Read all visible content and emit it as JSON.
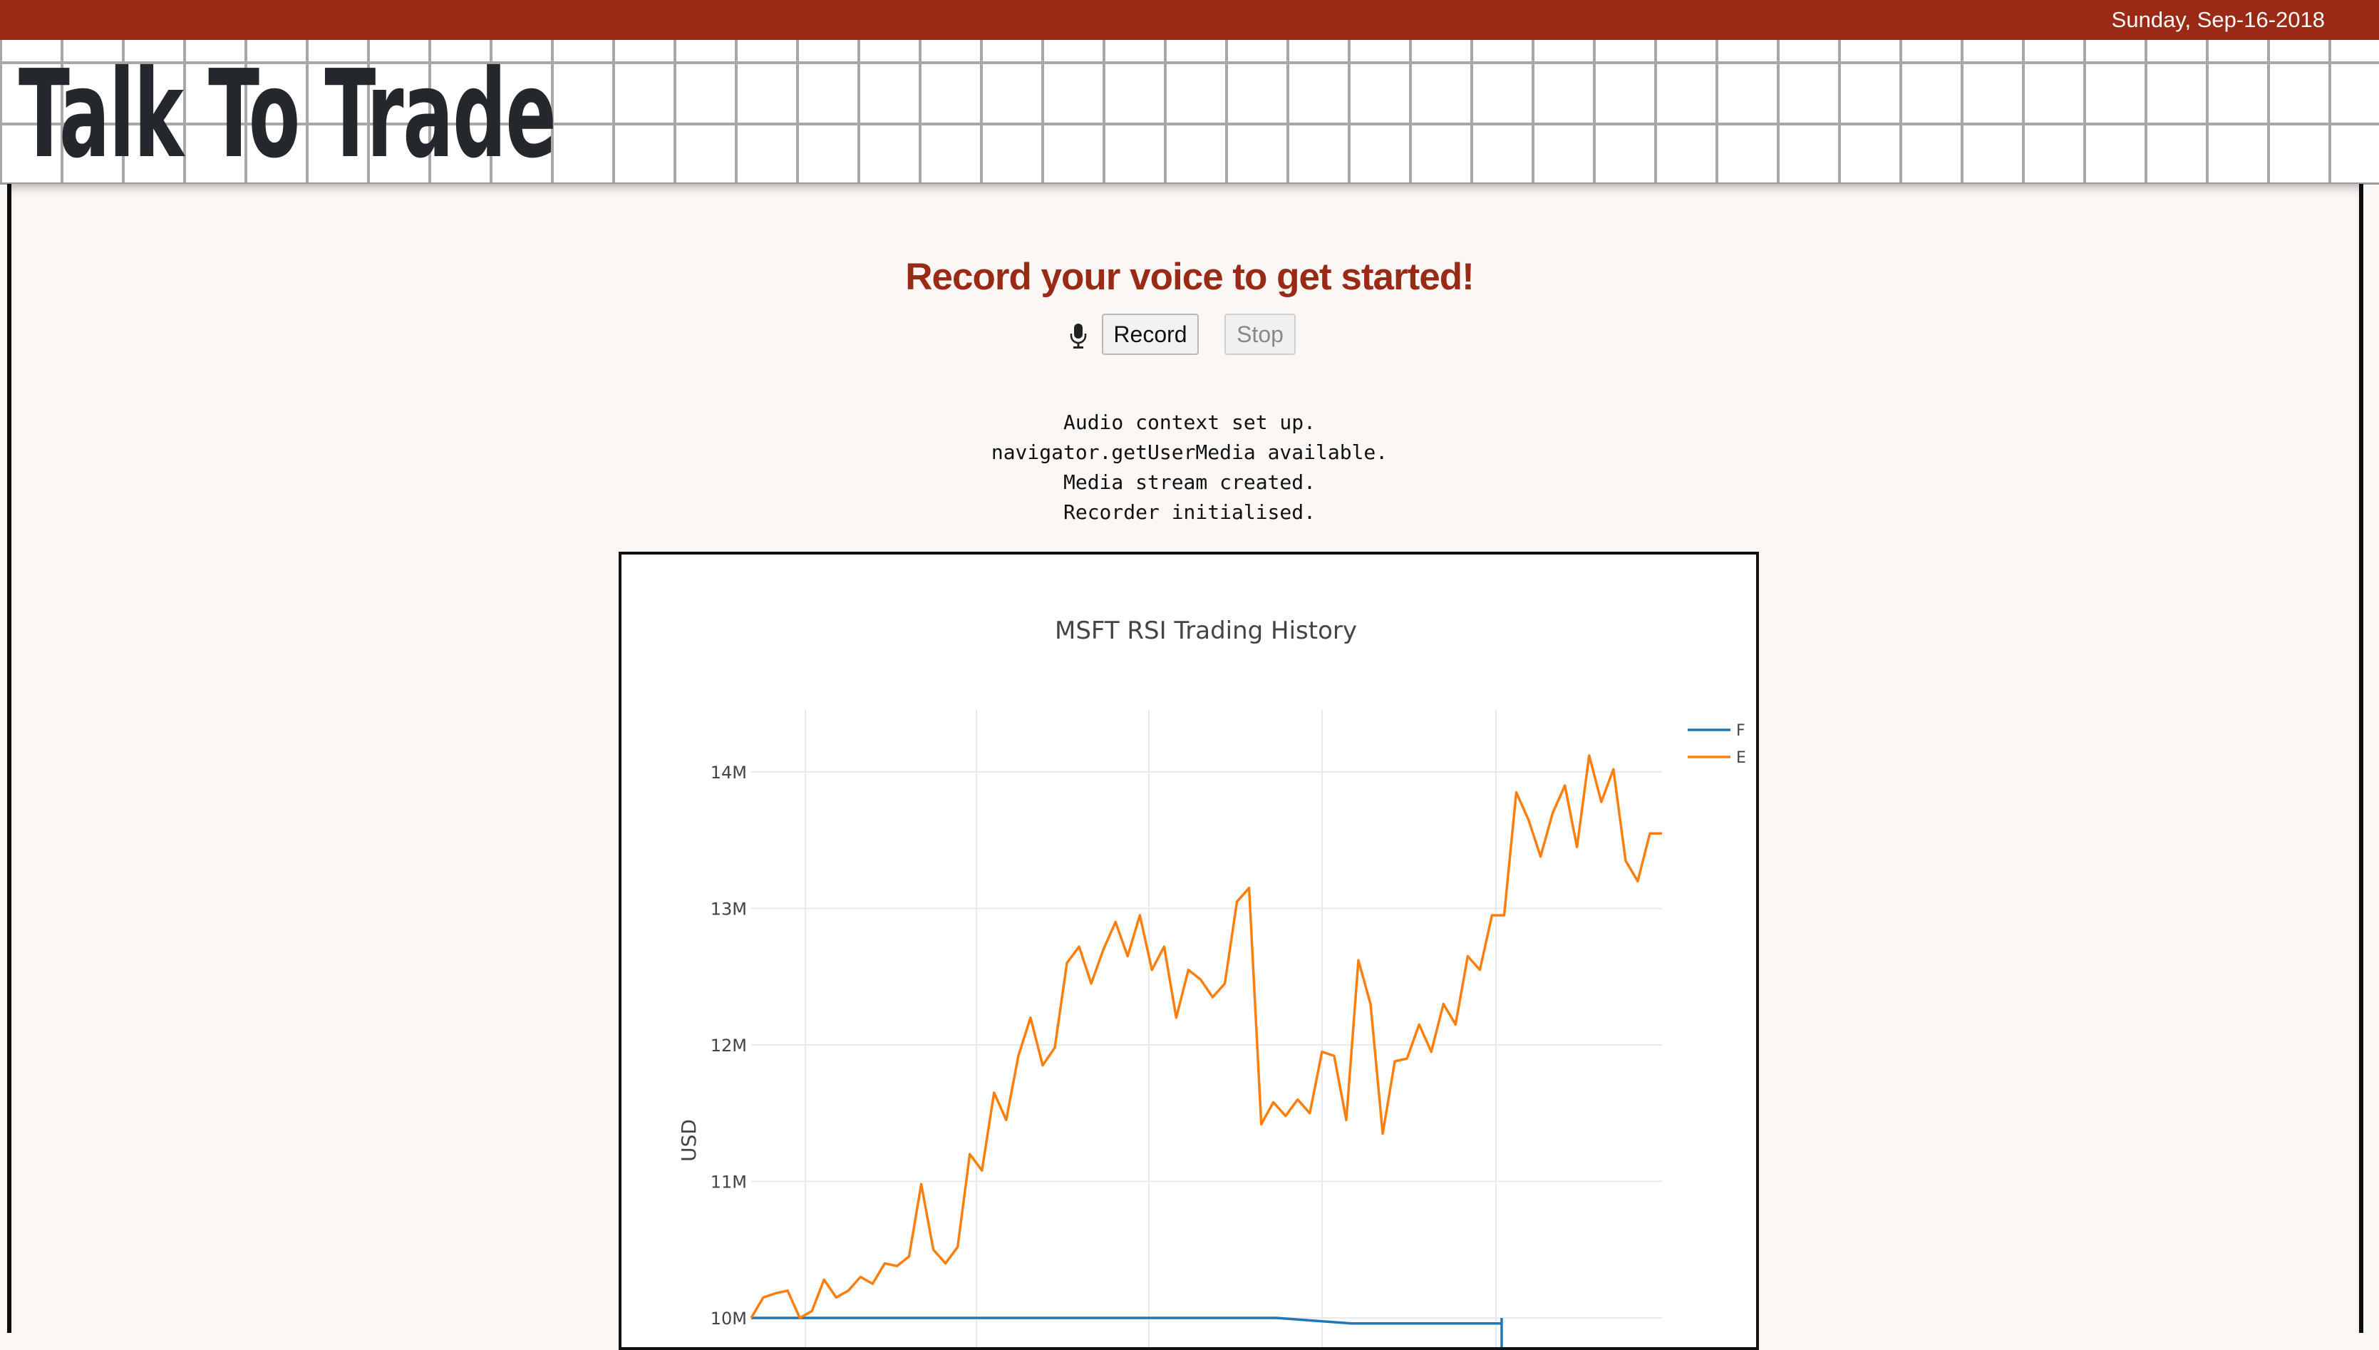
{
  "topbar": {
    "date": "Sunday, Sep-16-2018",
    "color": "#9a2a15"
  },
  "header": {
    "title": "Talk To Trade"
  },
  "main": {
    "headline": "Record your voice to get started!",
    "mic_icon": "microphone-icon",
    "record_label": "Record",
    "stop_label": "Stop",
    "log": [
      "Audio context set up.",
      "navigator.getUserMedia available.",
      "Media stream created.",
      "Recorder initialised."
    ]
  },
  "chart_data": {
    "type": "line",
    "title": "MSFT RSI Trading History",
    "ylabel": "USD",
    "yticks": [
      "14M",
      "13M",
      "12M",
      "11M",
      "10M"
    ],
    "ylim": [
      9.96,
      14.45
    ],
    "grid": true,
    "legend_placement": "top-right",
    "legend_entries_visible": [
      "F",
      "E"
    ],
    "series": [
      {
        "name": "F",
        "color": "#1f77b4",
        "values": [
          10.0,
          10.0,
          10.0,
          10.0,
          10.0,
          10.0,
          10.0,
          10.0,
          9.96,
          9.96,
          9.96
        ]
      },
      {
        "name": "E",
        "color": "#ff7f0e",
        "values": [
          10.0,
          10.15,
          10.18,
          10.2,
          10.0,
          10.05,
          10.28,
          10.15,
          10.2,
          10.3,
          10.25,
          10.4,
          10.38,
          10.45,
          10.98,
          10.5,
          10.4,
          10.52,
          11.2,
          11.08,
          11.65,
          11.45,
          11.92,
          12.2,
          11.85,
          11.98,
          12.6,
          12.72,
          12.45,
          12.7,
          12.9,
          12.65,
          12.95,
          12.55,
          12.72,
          12.2,
          12.55,
          12.48,
          12.35,
          12.45,
          13.05,
          13.15,
          11.42,
          11.58,
          11.48,
          11.6,
          11.5,
          11.95,
          11.92,
          11.45,
          12.62,
          12.3,
          11.35,
          11.88,
          11.9,
          12.15,
          11.95,
          12.3,
          12.15,
          12.65,
          12.55,
          12.95,
          12.95,
          13.85,
          13.65,
          13.38,
          13.7,
          13.9,
          13.45,
          14.12,
          13.78,
          14.02,
          13.35,
          13.2,
          13.55,
          13.55
        ]
      }
    ]
  }
}
